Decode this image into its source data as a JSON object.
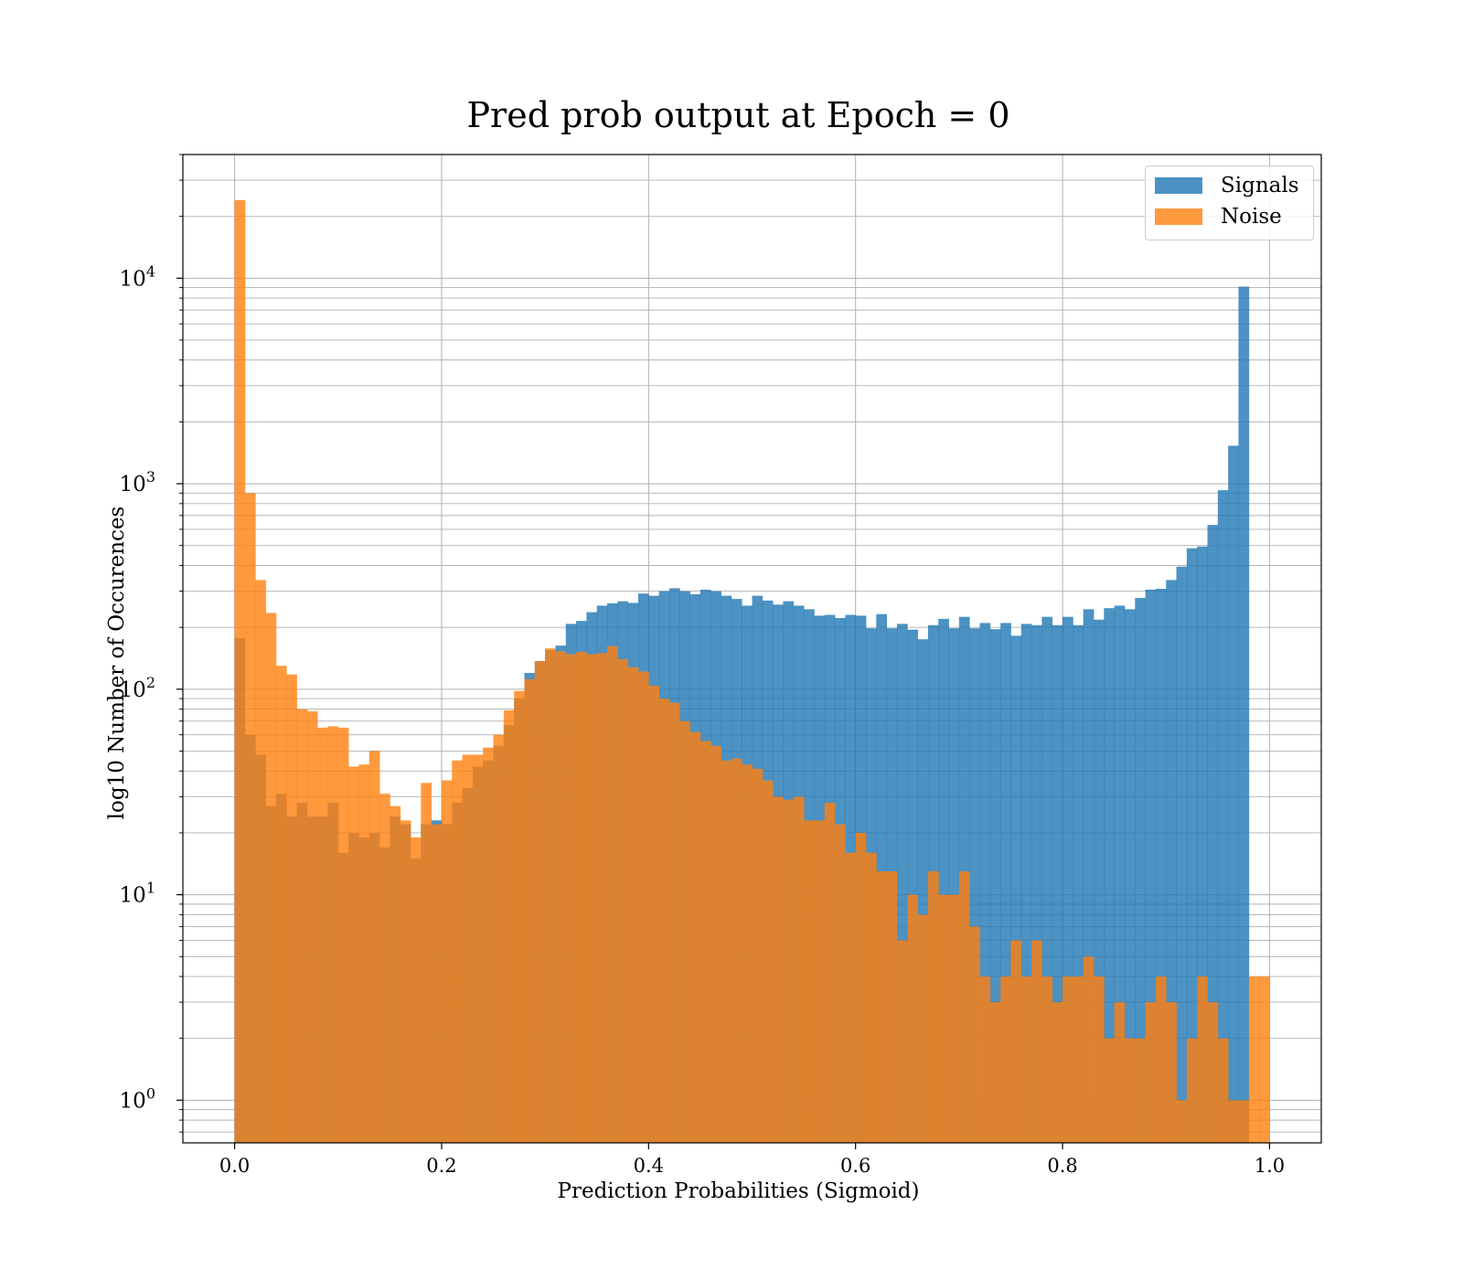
{
  "chart_data": {
    "type": "bar",
    "title": "Pred prob output at Epoch = 0",
    "xlabel": "Prediction Probabilities (Sigmoid)",
    "ylabel": "log10 Number of Occurences",
    "xlim": [
      -0.05,
      1.05
    ],
    "ylim": [
      0.62,
      40000
    ],
    "yscale": "log",
    "grid": true,
    "legend_position": "top-right",
    "x_ticks": [
      "0.0",
      "0.2",
      "0.4",
      "0.6",
      "0.8",
      "1.0"
    ],
    "x_tick_values": [
      0.0,
      0.2,
      0.4,
      0.6,
      0.8,
      1.0
    ],
    "y_ticks": [
      {
        "base": "10",
        "exp": "0",
        "value": 1
      },
      {
        "base": "10",
        "exp": "1",
        "value": 10
      },
      {
        "base": "10",
        "exp": "2",
        "value": 100
      },
      {
        "base": "10",
        "exp": "3",
        "value": 1000
      },
      {
        "base": "10",
        "exp": "4",
        "value": 10000
      }
    ],
    "bins": 100,
    "bin_range": [
      0,
      1
    ],
    "series": [
      {
        "name": "Signals",
        "color": "#1f77b4",
        "values": [
          177,
          60,
          48,
          27,
          31,
          24,
          28,
          24,
          24,
          28,
          16,
          20,
          19,
          20,
          17,
          24,
          22,
          15,
          22,
          23,
          22,
          28,
          33,
          42,
          45,
          53,
          67,
          90,
          120,
          137,
          155,
          163,
          208,
          215,
          237,
          255,
          262,
          268,
          263,
          292,
          285,
          300,
          310,
          300,
          290,
          305,
          300,
          285,
          275,
          255,
          285,
          270,
          258,
          268,
          255,
          245,
          228,
          230,
          222,
          230,
          228,
          198,
          232,
          198,
          208,
          195,
          175,
          205,
          220,
          198,
          225,
          198,
          210,
          196,
          210,
          182,
          208,
          205,
          225,
          205,
          225,
          205,
          245,
          218,
          248,
          255,
          245,
          278,
          305,
          308,
          340,
          395,
          485,
          495,
          630,
          930,
          1530,
          9100,
          0.5,
          0.5
        ]
      },
      {
        "name": "Noise",
        "color": "#ff7f0e",
        "values": [
          24000,
          900,
          340,
          235,
          130,
          118,
          80,
          78,
          65,
          66,
          65,
          42,
          43,
          50,
          31,
          27,
          23,
          19,
          35,
          22,
          36,
          45,
          48,
          48,
          52,
          60,
          79,
          98,
          112,
          137,
          158,
          153,
          148,
          152,
          148,
          150,
          162,
          140,
          128,
          122,
          104,
          90,
          86,
          70,
          62,
          56,
          53,
          45,
          46,
          43,
          41,
          36,
          30,
          29,
          30,
          23,
          23,
          28,
          22,
          16,
          20,
          16,
          13,
          13,
          6,
          10,
          8,
          13,
          10,
          10,
          13,
          7,
          4,
          3,
          4,
          6,
          4,
          6,
          4,
          3,
          4,
          4,
          5,
          4,
          2,
          3,
          2,
          2,
          3,
          4,
          3,
          1,
          2,
          4,
          3,
          2,
          1,
          1,
          4,
          4
        ]
      }
    ]
  }
}
